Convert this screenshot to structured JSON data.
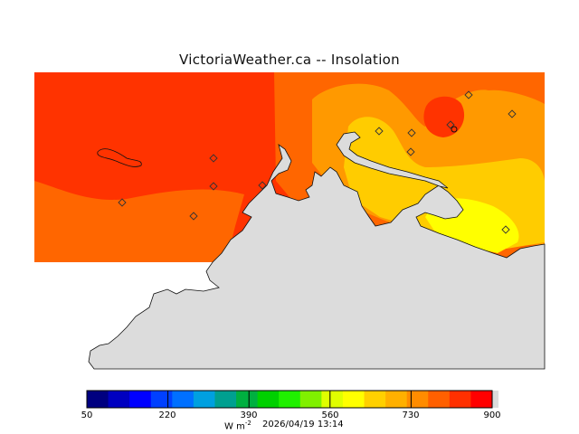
{
  "title": "VictoriaWeather.ca -- Insolation",
  "legend": {
    "ticks": [
      "50",
      "220",
      "390",
      "560",
      "730",
      "900"
    ],
    "units_base": "W m",
    "units_exp": "-2",
    "timestamp": "2026/04/19 13:14",
    "colors": [
      "#000080",
      "#0000c0",
      "#0000ff",
      "#0040ff",
      "#0070ff",
      "#00a0e0",
      "#00a090",
      "#00b040",
      "#00d000",
      "#20f000",
      "#80f000",
      "#e0ff00",
      "#ffff00",
      "#ffd000",
      "#ffb000",
      "#ff8c00",
      "#ff6000",
      "#ff3000",
      "#ff0000"
    ]
  },
  "map": {
    "land_color": "#dcdcdc",
    "contour_colors": {
      "c_red": "#ff3300",
      "c_orange": "#ff6600",
      "c_light_orange": "#ff9900",
      "c_gold": "#ffcc00",
      "c_yellow": "#ffff00"
    },
    "station_marker_icon": "diamond-icon",
    "station_count": 12
  }
}
